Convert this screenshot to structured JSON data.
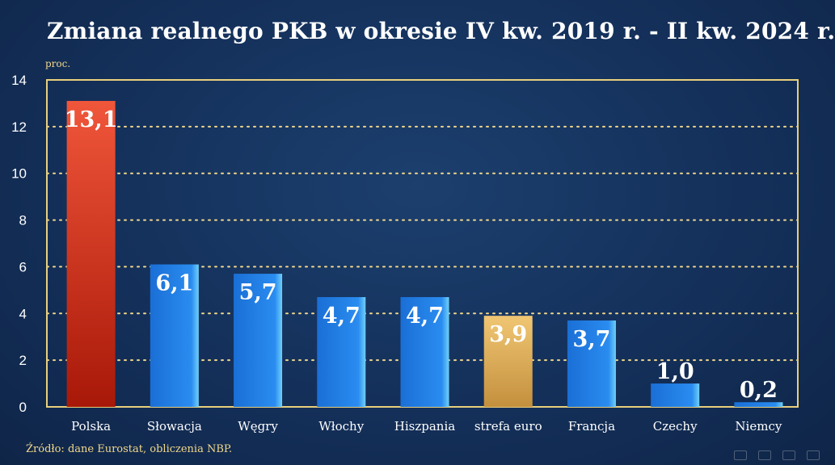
{
  "title": "Zmiana realnego PKB w okresie IV kw. 2019 r. - II kw. 2024 r.",
  "unit": "proc.",
  "source": "Źródło: dane Eurostat, obliczenia NBP.",
  "colors": {
    "highlight": "#e8462e",
    "main": "#1f7fe0",
    "euro": "#e3b45e",
    "grid": "#f2d88a"
  },
  "chart_data": {
    "type": "bar",
    "categories": [
      "Polska",
      "Słowacja",
      "Węgry",
      "Włochy",
      "Hiszpania",
      "strefa euro",
      "Francja",
      "Czechy",
      "Niemcy"
    ],
    "values": [
      13.1,
      6.1,
      5.7,
      4.7,
      4.7,
      3.9,
      3.7,
      1.0,
      0.2
    ],
    "value_labels": [
      "13,1",
      "6,1",
      "5,7",
      "4,7",
      "4,7",
      "3,9",
      "3,7",
      "1,0",
      "0,2"
    ],
    "title": "Zmiana realnego PKB w okresie IV kw. 2019 r. - II kw. 2024 r.",
    "ylabel": "proc.",
    "ylim": [
      0,
      14
    ],
    "yticks": [
      0,
      2,
      4,
      6,
      8,
      10,
      12,
      14
    ],
    "grid": true,
    "legend": "none"
  }
}
